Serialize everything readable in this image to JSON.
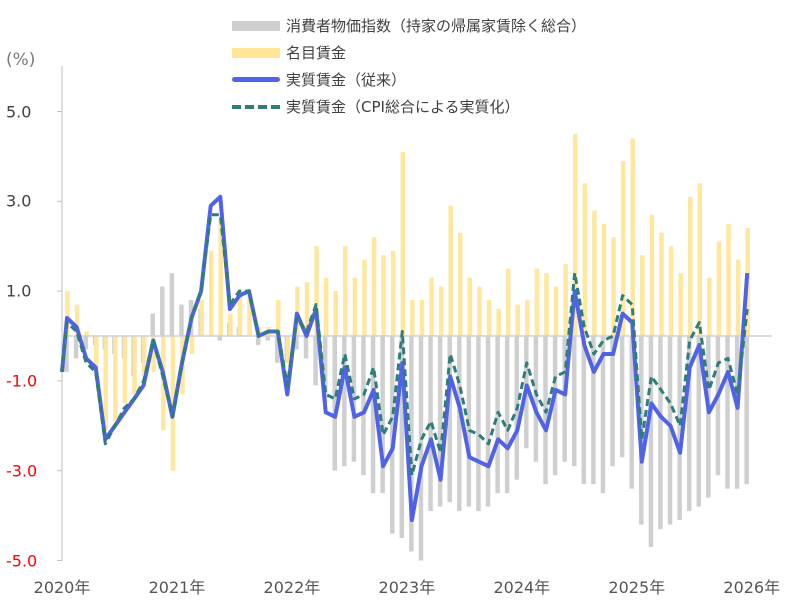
{
  "chart_data": {
    "type": "bar+line",
    "title": "",
    "ylabel": "(%)",
    "xlabel": "",
    "ylim": [
      -5.0,
      6.0
    ],
    "y_ticks": [
      "5.0",
      "3.0",
      "1.0",
      "-1.0",
      "-3.0",
      "-5.0"
    ],
    "y_tick_values": [
      5,
      3,
      1,
      -1,
      -3,
      -5
    ],
    "x_tick_labels": [
      "2020年",
      "2021年",
      "2022年",
      "2023年",
      "2024年",
      "2025年",
      "2026年"
    ],
    "grid": false,
    "legend_position": "top-center",
    "x": [
      "2020-01",
      "2020-02",
      "2020-03",
      "2020-04",
      "2020-05",
      "2020-06",
      "2020-07",
      "2020-08",
      "2020-09",
      "2020-10",
      "2020-11",
      "2020-12",
      "2021-01",
      "2021-02",
      "2021-03",
      "2021-04",
      "2021-05",
      "2021-06",
      "2021-07",
      "2021-08",
      "2021-09",
      "2021-10",
      "2021-11",
      "2021-12",
      "2022-01",
      "2022-02",
      "2022-03",
      "2022-04",
      "2022-05",
      "2022-06",
      "2022-07",
      "2022-08",
      "2022-09",
      "2022-10",
      "2022-11",
      "2022-12",
      "2023-01",
      "2023-02",
      "2023-03",
      "2023-04",
      "2023-05",
      "2023-06",
      "2023-07",
      "2023-08",
      "2023-09",
      "2023-10",
      "2023-11",
      "2023-12",
      "2024-01",
      "2024-02",
      "2024-03",
      "2024-04",
      "2024-05",
      "2024-06",
      "2024-07",
      "2024-08",
      "2024-09",
      "2024-10",
      "2024-11",
      "2024-12",
      "2025-01",
      "2025-02",
      "2025-03",
      "2025-04",
      "2025-05",
      "2025-06",
      "2025-07",
      "2025-08",
      "2025-09",
      "2025-10",
      "2025-11",
      "2025-12"
    ],
    "series": [
      {
        "name": "消費者物価指数（持家の帰属家賃除く総合）",
        "type": "bar",
        "color": "#d0cfcf",
        "note": "plotted as negative contribution",
        "values": [
          -0.8,
          -0.5,
          -0.3,
          -0.2,
          -0.3,
          -0.4,
          -0.5,
          -0.9,
          -0.6,
          0.5,
          1.1,
          1.4,
          0.7,
          0.8,
          0.6,
          0.0,
          -0.1,
          0.3,
          0.2,
          0.0,
          -0.2,
          -0.1,
          -0.6,
          -0.6,
          -0.3,
          -0.5,
          -1.1,
          -1.5,
          -3.0,
          -2.9,
          -2.8,
          -3.1,
          -3.5,
          -3.5,
          -4.4,
          -4.5,
          -4.8,
          -5.0,
          -3.9,
          -3.8,
          -3.7,
          -3.9,
          -3.8,
          -3.9,
          -3.8,
          -3.5,
          -3.5,
          -3.2,
          -2.5,
          -2.8,
          -3.3,
          -3.1,
          -2.8,
          -2.9,
          -3.3,
          -3.3,
          -3.5,
          -2.9,
          -2.7,
          -3.4,
          -4.2,
          -4.7,
          -4.3,
          -4.2,
          -4.1,
          -3.9,
          -3.8,
          -3.6,
          -3.1,
          -3.4,
          -3.4,
          -3.3
        ]
      },
      {
        "name": "名目賃金",
        "type": "bar",
        "color": "#ffe699",
        "values": [
          1.0,
          0.7,
          0.1,
          -0.7,
          -2.1,
          -1.9,
          -1.5,
          -1.3,
          -0.9,
          -0.8,
          -2.1,
          -3.0,
          -1.3,
          -0.4,
          0.8,
          1.9,
          2.6,
          0.5,
          1.0,
          0.9,
          0.2,
          0.2,
          0.8,
          -0.6,
          1.1,
          1.2,
          2.0,
          1.3,
          1.0,
          2.0,
          1.3,
          1.7,
          2.2,
          1.8,
          1.9,
          4.1,
          0.8,
          0.8,
          1.3,
          1.1,
          2.9,
          2.3,
          1.3,
          1.1,
          0.8,
          0.6,
          1.5,
          0.7,
          0.8,
          1.5,
          1.4,
          1.1,
          1.6,
          4.5,
          3.4,
          2.8,
          2.5,
          2.2,
          3.9,
          4.4,
          1.8,
          2.7,
          2.3,
          2.0,
          1.4,
          3.1,
          3.4,
          1.3,
          2.1,
          2.5,
          1.7,
          2.4
        ]
      },
      {
        "name": "実質賃金（従来）",
        "type": "line",
        "color": "#5062e6",
        "values": [
          0.4,
          0.2,
          -0.5,
          -0.7,
          -2.3,
          -2.0,
          -1.7,
          -1.4,
          -1.1,
          -0.1,
          -0.8,
          -1.8,
          -0.6,
          0.4,
          1.0,
          2.9,
          3.1,
          0.6,
          0.9,
          1.0,
          0.0,
          0.1,
          0.1,
          -1.3,
          0.5,
          0.0,
          0.6,
          -1.7,
          -1.8,
          -0.7,
          -1.8,
          -1.7,
          -1.2,
          -2.9,
          -2.5,
          -0.6,
          -4.1,
          -2.9,
          -2.3,
          -3.2,
          -0.9,
          -1.6,
          -2.7,
          -2.8,
          -2.9,
          -2.3,
          -2.5,
          -2.1,
          -1.1,
          -1.7,
          -2.1,
          -1.2,
          -1.3,
          1.0,
          -0.2,
          -0.8,
          -0.4,
          -0.4,
          0.5,
          0.3,
          -2.8,
          -1.5,
          -1.8,
          -2.0,
          -2.6,
          -0.7,
          -0.2,
          -1.7,
          -1.3,
          -0.8,
          -1.6,
          1.4
        ]
      },
      {
        "name": "実質賃金（CPI総合による実質化）",
        "type": "line",
        "style": "dashed",
        "color": "#2e7d7a",
        "values": [
          0.3,
          0.1,
          -0.6,
          -0.8,
          -2.4,
          -2.0,
          -1.6,
          -1.4,
          -1.0,
          -0.1,
          -0.9,
          -1.8,
          -0.6,
          0.4,
          1.0,
          2.7,
          2.7,
          0.7,
          1.0,
          1.0,
          0.0,
          0.1,
          0.1,
          -1.1,
          0.4,
          0.1,
          0.7,
          -1.3,
          -1.4,
          -0.4,
          -1.4,
          -1.3,
          -0.7,
          -2.2,
          -1.8,
          0.1,
          -3.1,
          -2.3,
          -1.9,
          -2.6,
          -0.4,
          -1.1,
          -2.1,
          -2.2,
          -2.4,
          -1.7,
          -2.1,
          -1.6,
          -0.6,
          -1.3,
          -1.7,
          -0.9,
          -0.8,
          1.4,
          0.2,
          -0.4,
          -0.1,
          0.0,
          0.9,
          0.7,
          -2.3,
          -0.9,
          -1.2,
          -1.5,
          -2.0,
          -0.1,
          0.3,
          -1.2,
          -0.6,
          -0.5,
          -1.3,
          0.6
        ]
      }
    ]
  },
  "legend": {
    "items": [
      {
        "label": "消費者物価指数（持家の帰属家賃除く総合）",
        "color": "#d0cfcf",
        "kind": "bar"
      },
      {
        "label": "名目賃金",
        "color": "#ffe699",
        "kind": "bar"
      },
      {
        "label": "実質賃金（従来）",
        "color": "#5062e6",
        "kind": "line"
      },
      {
        "label": "実質賃金（CPI総合による実質化）",
        "color": "#2e7d7a",
        "kind": "dashed"
      }
    ]
  },
  "axis": {
    "unit": "(%)",
    "y_labels": [
      {
        "text": "5.0",
        "value": 5,
        "color": "#404040"
      },
      {
        "text": "3.0",
        "value": 3,
        "color": "#404040"
      },
      {
        "text": "1.0",
        "value": 1,
        "color": "#404040"
      },
      {
        "text": "-1.0",
        "value": -1,
        "color": "#ff0000"
      },
      {
        "text": "-3.0",
        "value": -3,
        "color": "#ff0000"
      },
      {
        "text": "-5.0",
        "value": -5,
        "color": "#ff0000"
      }
    ],
    "x_labels": [
      "2020年",
      "2021年",
      "2022年",
      "2023年",
      "2024年",
      "2025年",
      "2026年"
    ]
  }
}
